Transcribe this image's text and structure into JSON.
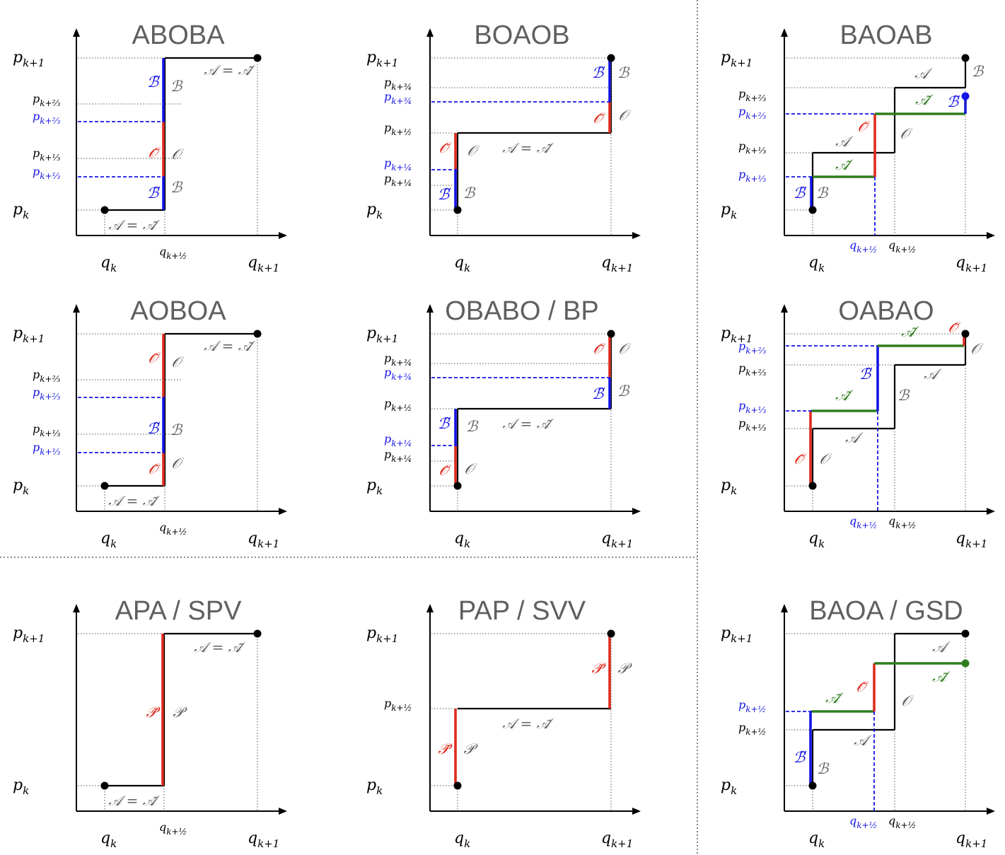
{
  "colors": {
    "black": "#000000",
    "gray": "#5f5f5f",
    "blue": "#1414e6",
    "red": "#e02b1e",
    "green": "#2f7d1f"
  },
  "text": {
    "pk": "p",
    "qk": "q",
    "sub_k": "k",
    "sub_k1": "k+1",
    "sub_half": "k+½",
    "sub_third": "k+⅓",
    "sub_twothird": "k+⅔",
    "sub_quarter": "k+¼",
    "sub_threequarter": "k+¾",
    "A": "𝒜",
    "A_eq": "𝒜 = 𝒜̃",
    "A_tilde": "𝒜̃",
    "B": "ℬ",
    "B_tilde": "ℬ̃",
    "O": "𝒪",
    "O_tilde": "𝒪̃",
    "P": "𝒫",
    "P_tilde": "𝒫̃"
  },
  "panels": [
    {
      "id": "ABOBA",
      "title": "ABOBA"
    },
    {
      "id": "BOAOB",
      "title": "BOAOB"
    },
    {
      "id": "BAOAB",
      "title": "BAOAB"
    },
    {
      "id": "AOBOA",
      "title": "AOBOA"
    },
    {
      "id": "OBABO",
      "title": "OBABO / BP"
    },
    {
      "id": "OABAO",
      "title": "OABAO"
    },
    {
      "id": "APA",
      "title": "APA / SPV"
    },
    {
      "id": "PAP",
      "title": "PAP / SVV"
    },
    {
      "id": "BAOA",
      "title": "BAOA / GSD"
    }
  ]
}
